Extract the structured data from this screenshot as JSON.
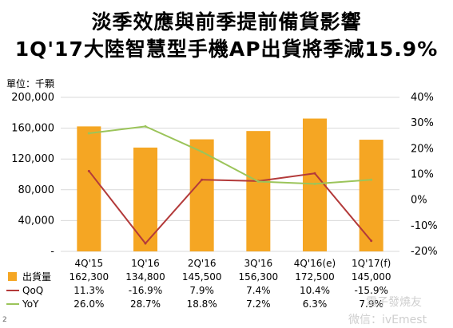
{
  "title_line1": "淡季效應與前季提前備貨影響",
  "title_line2": "1Q'17大陸智慧型手機AP出貨將季減15.9%",
  "unit_label": "單位：千顆",
  "page_number": "2",
  "watermark_1": "電子發燒友",
  "watermark_2": "微信：ivEmest",
  "colors": {
    "bar": "#f5a623",
    "qoq": "#b33a3a",
    "yoy": "#9bc45a",
    "grid": "#d9d9d9"
  },
  "chart_data": {
    "type": "bar",
    "categories": [
      "4Q'15",
      "1Q'16",
      "2Q'16",
      "3Q'16",
      "4Q'16(e)",
      "1Q'17(f)"
    ],
    "y_left": {
      "min": 0,
      "max": 200000,
      "ticks": [
        0,
        40000,
        80000,
        120000,
        160000,
        200000
      ],
      "tick_labels": [
        "-",
        "40,000",
        "80,000",
        "120,000",
        "160,000",
        "200,000"
      ]
    },
    "y_right": {
      "min": -20,
      "max": 40,
      "ticks": [
        -20,
        -10,
        0,
        10,
        20,
        30,
        40
      ],
      "tick_labels": [
        "-20%",
        "-10%",
        "0%",
        "10%",
        "20%",
        "30%",
        "40%"
      ]
    },
    "grid": true,
    "series": [
      {
        "name": "出貨量",
        "kind": "bar",
        "axis": "left",
        "values": [
          162300,
          134800,
          145500,
          156300,
          172500,
          145000
        ],
        "labels": [
          "162,300",
          "134,800",
          "145,500",
          "156,300",
          "172,500",
          "145,000"
        ]
      },
      {
        "name": "QoQ",
        "kind": "line",
        "axis": "right",
        "values": [
          11.3,
          -16.9,
          7.9,
          7.4,
          10.4,
          -15.9
        ],
        "labels": [
          "11.3%",
          "-16.9%",
          "7.9%",
          "7.4%",
          "10.4%",
          "-15.9%"
        ]
      },
      {
        "name": "YoY",
        "kind": "line",
        "axis": "right",
        "values": [
          26.0,
          28.7,
          18.8,
          7.2,
          6.3,
          7.9
        ],
        "labels": [
          "26.0%",
          "28.7%",
          "18.8%",
          "7.2%",
          "6.3%",
          "7.9%"
        ]
      }
    ]
  }
}
